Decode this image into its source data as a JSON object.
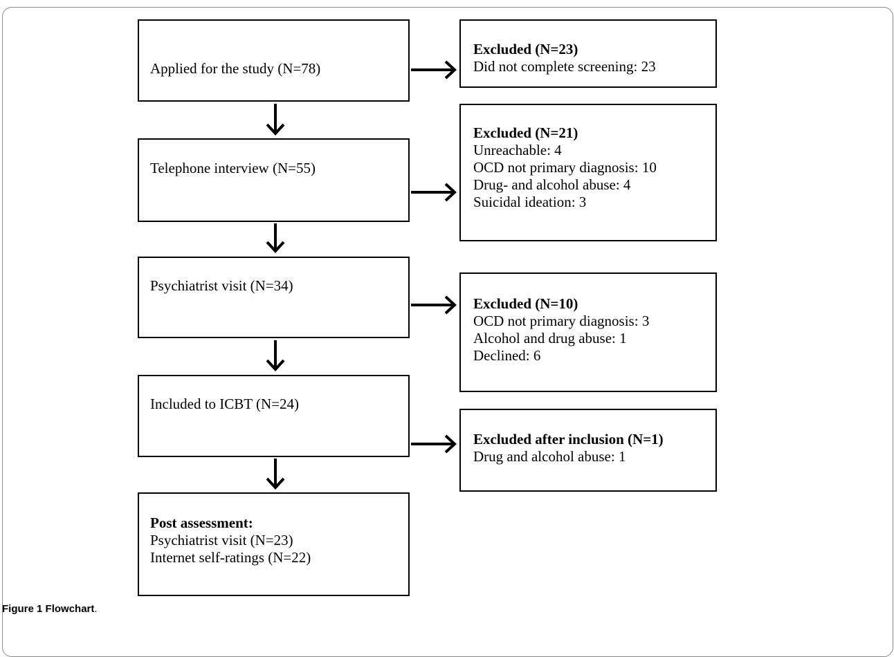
{
  "left_boxes": [
    {
      "lines": [
        "Applied for the study (N=78)"
      ]
    },
    {
      "lines": [
        "Telephone interview (N=55)"
      ]
    },
    {
      "lines": [
        "Psychiatrist visit (N=34)"
      ]
    },
    {
      "lines": [
        "Included to ICBT (N=24)"
      ]
    },
    {
      "heading": "Post assessment:",
      "lines": [
        "Psychiatrist visit (N=23)",
        "Internet self-ratings (N=22)"
      ]
    }
  ],
  "right_boxes": [
    {
      "heading": "Excluded (N=23)",
      "lines": [
        "Did not complete screening: 23"
      ]
    },
    {
      "heading": "Excluded (N=21)",
      "lines": [
        "Unreachable: 4",
        "OCD not primary diagnosis: 10",
        "Drug- and alcohol abuse: 4",
        "Suicidal ideation: 3"
      ]
    },
    {
      "heading": "Excluded (N=10)",
      "lines": [
        "OCD not primary diagnosis: 3",
        "Alcohol and drug abuse: 1",
        "Declined: 6"
      ]
    },
    {
      "heading": "Excluded after inclusion (N=1)",
      "lines": [
        "Drug and alcohol abuse: 1"
      ]
    }
  ],
  "caption": {
    "number": "Figure 1",
    "title": "Flowchart",
    "end": "."
  }
}
